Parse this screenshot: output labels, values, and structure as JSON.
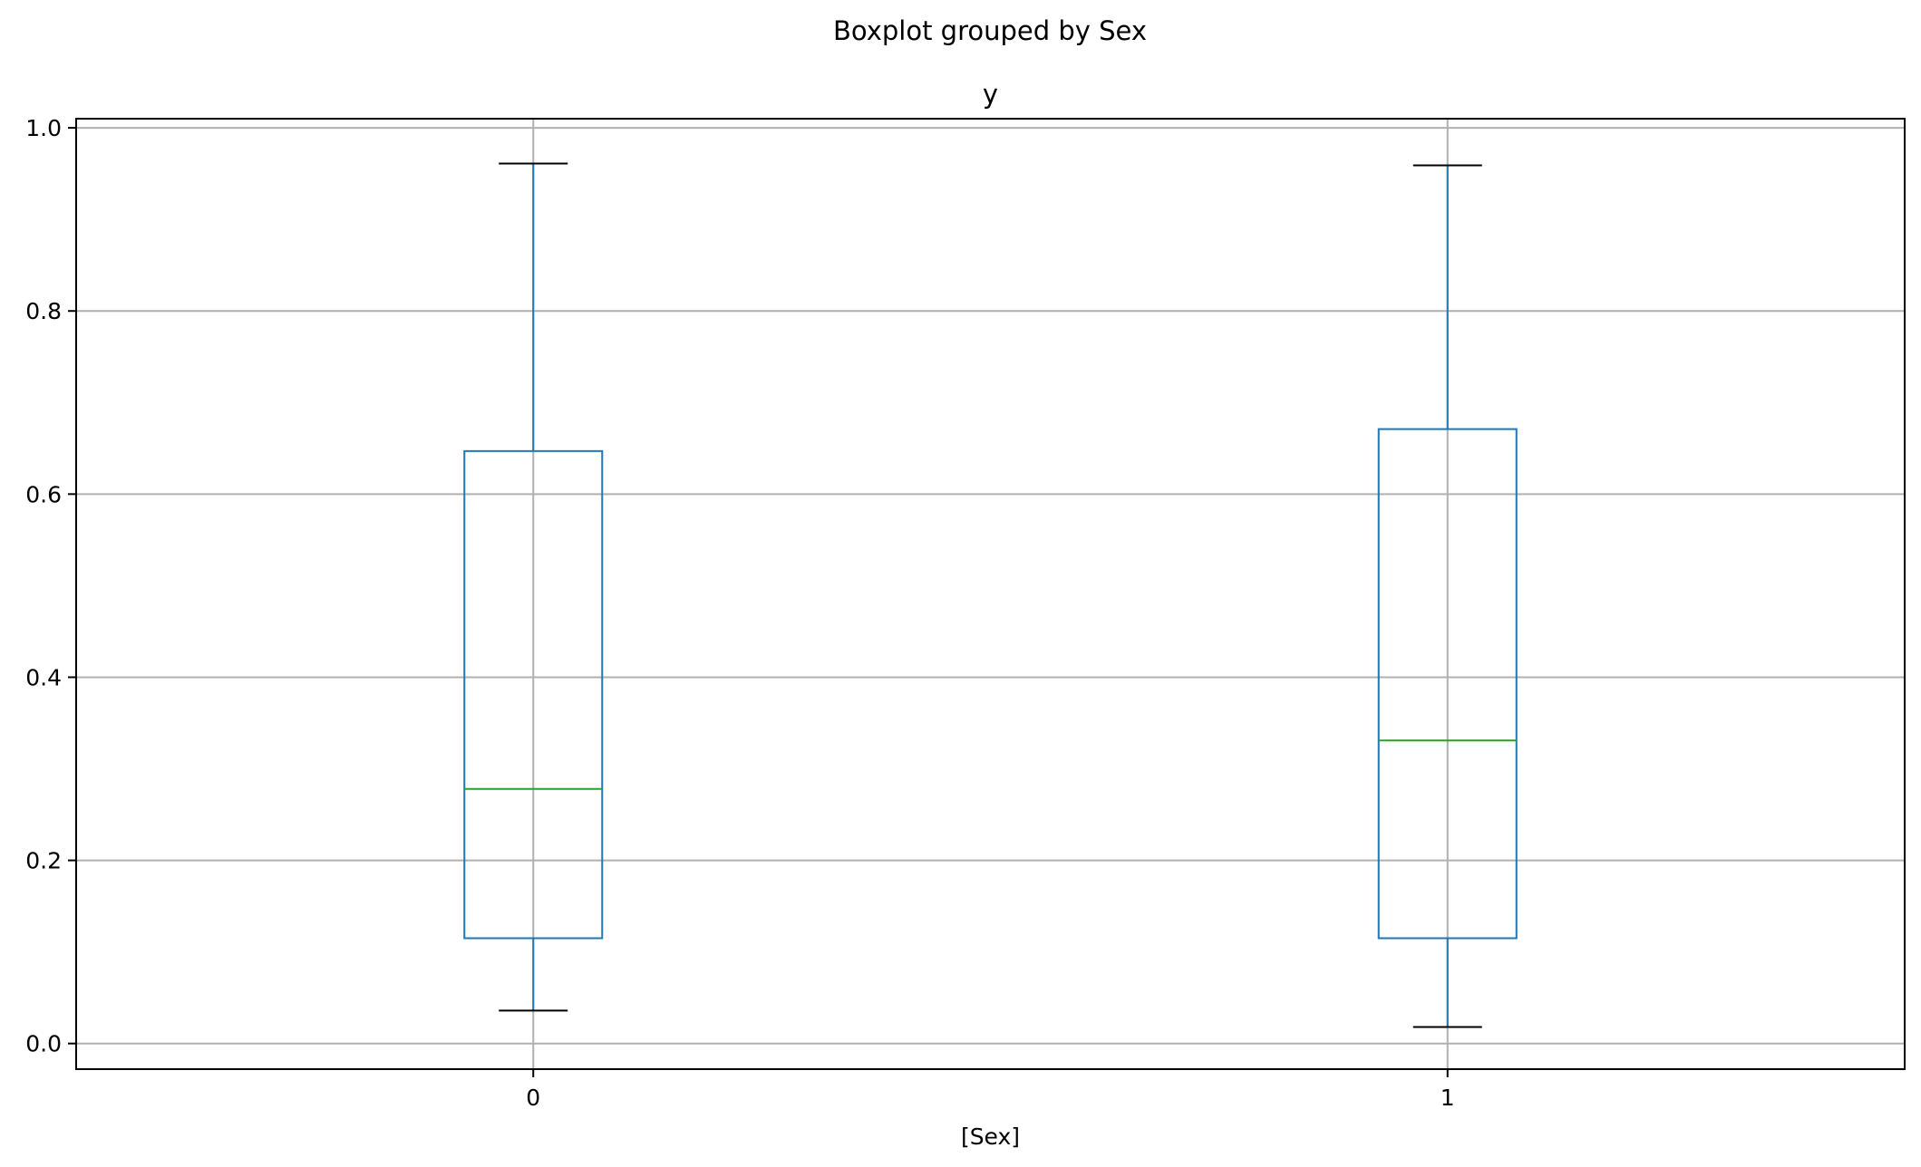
{
  "chart_data": {
    "type": "box",
    "title": "Boxplot grouped by Sex",
    "subplot_title": "y",
    "xlabel": "[Sex]",
    "ylabel": "",
    "ylim": [
      -0.028,
      1.01
    ],
    "yticks": [
      0.0,
      0.2,
      0.4,
      0.6,
      0.8,
      1.0
    ],
    "ytick_labels": [
      "0.0",
      "0.2",
      "0.4",
      "0.6",
      "0.8",
      "1.0"
    ],
    "grid": true,
    "categories": [
      "0",
      "1"
    ],
    "boxes": [
      {
        "category": "0",
        "whisker_low": 0.036,
        "q1": 0.115,
        "median": 0.278,
        "q3": 0.647,
        "whisker_high": 0.961
      },
      {
        "category": "1",
        "whisker_low": 0.018,
        "q1": 0.115,
        "median": 0.331,
        "q3": 0.671,
        "whisker_high": 0.959
      }
    ],
    "colors": {
      "box": "#1f77b4",
      "median": "#2ca02c",
      "caps": "#000000",
      "grid": "#b0b0b0",
      "axes": "#000000"
    }
  }
}
